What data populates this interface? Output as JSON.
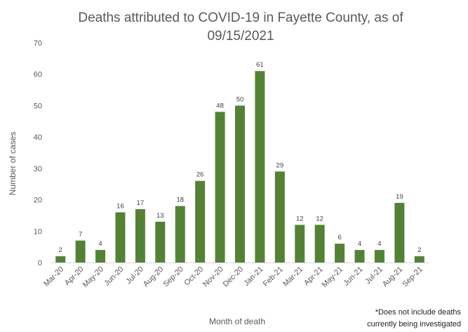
{
  "chart_data": {
    "type": "bar",
    "title": "Deaths attributed to COVID-19 in Fayette County, as of 09/15/2021",
    "title_lines": [
      "Deaths attributed to COVID-19 in Fayette County, as of",
      "09/15/2021"
    ],
    "xlabel": "Month of death",
    "ylabel": "Number of cases",
    "ylim": [
      0,
      70
    ],
    "yticks": [
      0,
      10,
      20,
      30,
      40,
      50,
      60,
      70
    ],
    "categories": [
      "Mar-20",
      "Apr-20",
      "May-20",
      "Jun-20",
      "Jul-20",
      "Aug-20",
      "Sep-20",
      "Oct-20",
      "Nov-20",
      "Dec-20",
      "Jan-21",
      "Feb-21",
      "Mar-21",
      "Apr-21",
      "May-21",
      "Jun-21",
      "Jul-21",
      "Aug-21",
      "Sep-21"
    ],
    "values": [
      2,
      7,
      4,
      16,
      17,
      13,
      18,
      26,
      48,
      50,
      61,
      29,
      12,
      12,
      6,
      4,
      4,
      19,
      2
    ],
    "bar_color": "#548235",
    "grid": false,
    "data_labels": true
  },
  "footnote": {
    "line1": "*Does not include deaths",
    "line2": "currently being investigated"
  }
}
